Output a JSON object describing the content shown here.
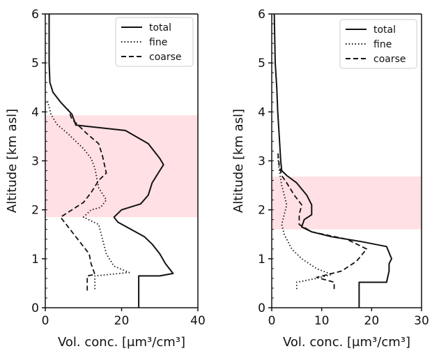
{
  "chart_data": [
    {
      "type": "line",
      "panel": "left",
      "xlabel": "Vol. conc. [μm³/cm³]",
      "ylabel": "Altitude [km asl]",
      "xlim": [
        0,
        40
      ],
      "ylim": [
        0,
        6
      ],
      "xticks": [
        0,
        20,
        40
      ],
      "yticks": [
        0,
        1,
        2,
        3,
        4,
        5,
        6
      ],
      "legend_position": "top-right",
      "shaded_band": {
        "ymin": 1.85,
        "ymax": 3.93,
        "color": "#ffe0e4"
      },
      "series": [
        {
          "name": "total",
          "style": "solid",
          "points": [
            [
              24.5,
              0.0
            ],
            [
              24.5,
              0.65
            ],
            [
              30,
              0.65
            ],
            [
              33.5,
              0.7
            ],
            [
              31.5,
              0.9
            ],
            [
              30,
              1.1
            ],
            [
              28,
              1.3
            ],
            [
              26,
              1.45
            ],
            [
              22,
              1.62
            ],
            [
              19,
              1.75
            ],
            [
              18,
              1.85
            ],
            [
              20,
              2.0
            ],
            [
              25,
              2.12
            ],
            [
              27,
              2.3
            ],
            [
              28,
              2.55
            ],
            [
              30,
              2.8
            ],
            [
              31,
              2.92
            ],
            [
              30,
              3.05
            ],
            [
              27,
              3.35
            ],
            [
              21,
              3.62
            ],
            [
              8,
              3.73
            ],
            [
              7,
              3.95
            ],
            [
              4,
              4.2
            ],
            [
              2,
              4.4
            ],
            [
              1.2,
              4.6
            ],
            [
              1,
              5.0
            ],
            [
              1,
              6.0
            ]
          ]
        },
        {
          "name": "fine",
          "style": "dotted",
          "points": [
            [
              13,
              0.38
            ],
            [
              13,
              0.65
            ],
            [
              22,
              0.72
            ],
            [
              18,
              0.85
            ],
            [
              16,
              1.1
            ],
            [
              15,
              1.4
            ],
            [
              14,
              1.7
            ],
            [
              10,
              1.85
            ],
            [
              12,
              2.0
            ],
            [
              14.5,
              2.05
            ],
            [
              16,
              2.2
            ],
            [
              14,
              2.45
            ],
            [
              13,
              2.85
            ],
            [
              12,
              3.05
            ],
            [
              10,
              3.25
            ],
            [
              6,
              3.55
            ],
            [
              3,
              3.75
            ],
            [
              1.5,
              3.95
            ],
            [
              0.5,
              4.25
            ]
          ]
        },
        {
          "name": "coarse",
          "style": "dashed",
          "points": [
            [
              11,
              0.35
            ],
            [
              11,
              0.65
            ],
            [
              13,
              0.68
            ],
            [
              12,
              0.9
            ],
            [
              11.5,
              1.1
            ],
            [
              9,
              1.35
            ],
            [
              6,
              1.65
            ],
            [
              4,
              1.85
            ],
            [
              6,
              1.95
            ],
            [
              10,
              2.15
            ],
            [
              12,
              2.35
            ],
            [
              14,
              2.6
            ],
            [
              16,
              2.75
            ],
            [
              15,
              3.1
            ],
            [
              14,
              3.35
            ],
            [
              11,
              3.55
            ],
            [
              7,
              3.85
            ],
            [
              6,
              4.05
            ]
          ]
        }
      ]
    },
    {
      "type": "line",
      "panel": "right",
      "xlabel": "Vol. conc. [μm³/cm³]",
      "ylabel": "Altitude [km asl]",
      "xlim": [
        0,
        30
      ],
      "ylim": [
        0,
        6
      ],
      "xticks": [
        0,
        10,
        20,
        30
      ],
      "yticks": [
        0,
        1,
        2,
        3,
        4,
        5,
        6
      ],
      "legend_position": "top-right",
      "shaded_band": {
        "ymin": 1.6,
        "ymax": 2.68,
        "color": "#ffe0e4"
      },
      "series": [
        {
          "name": "total",
          "style": "solid",
          "points": [
            [
              17.5,
              0.0
            ],
            [
              17.5,
              0.52
            ],
            [
              23,
              0.52
            ],
            [
              23.5,
              0.75
            ],
            [
              23.5,
              0.9
            ],
            [
              24,
              1.0
            ],
            [
              23,
              1.25
            ],
            [
              18,
              1.35
            ],
            [
              12,
              1.45
            ],
            [
              8,
              1.55
            ],
            [
              6,
              1.65
            ],
            [
              6.5,
              1.8
            ],
            [
              8,
              1.9
            ],
            [
              8,
              2.1
            ],
            [
              7,
              2.3
            ],
            [
              5,
              2.55
            ],
            [
              3,
              2.7
            ],
            [
              2,
              2.8
            ],
            [
              1.8,
              3.0
            ],
            [
              1.5,
              3.5
            ],
            [
              1.2,
              4.0
            ],
            [
              1,
              4.5
            ],
            [
              0.7,
              5.0
            ],
            [
              0.5,
              6.0
            ]
          ]
        },
        {
          "name": "fine",
          "style": "dotted",
          "points": [
            [
              5,
              0.38
            ],
            [
              5,
              0.52
            ],
            [
              9,
              0.6
            ],
            [
              12,
              0.68
            ],
            [
              9,
              0.8
            ],
            [
              6,
              1.0
            ],
            [
              4,
              1.2
            ],
            [
              2.5,
              1.5
            ],
            [
              2,
              1.7
            ],
            [
              2.5,
              1.9
            ],
            [
              3,
              2.1
            ],
            [
              2,
              2.5
            ],
            [
              1.5,
              2.8
            ],
            [
              1.2,
              3.1
            ]
          ]
        },
        {
          "name": "coarse",
          "style": "dashed",
          "points": [
            [
              12.5,
              0.38
            ],
            [
              12.5,
              0.52
            ],
            [
              9,
              0.62
            ],
            [
              14,
              0.75
            ],
            [
              17,
              0.95
            ],
            [
              19,
              1.2
            ],
            [
              15,
              1.4
            ],
            [
              8,
              1.55
            ],
            [
              5.5,
              1.7
            ],
            [
              5.5,
              1.9
            ],
            [
              6,
              2.1
            ],
            [
              4.5,
              2.3
            ],
            [
              3,
              2.55
            ],
            [
              2,
              2.7
            ],
            [
              1.5,
              2.9
            ],
            [
              1.2,
              3.2
            ]
          ]
        }
      ]
    }
  ]
}
